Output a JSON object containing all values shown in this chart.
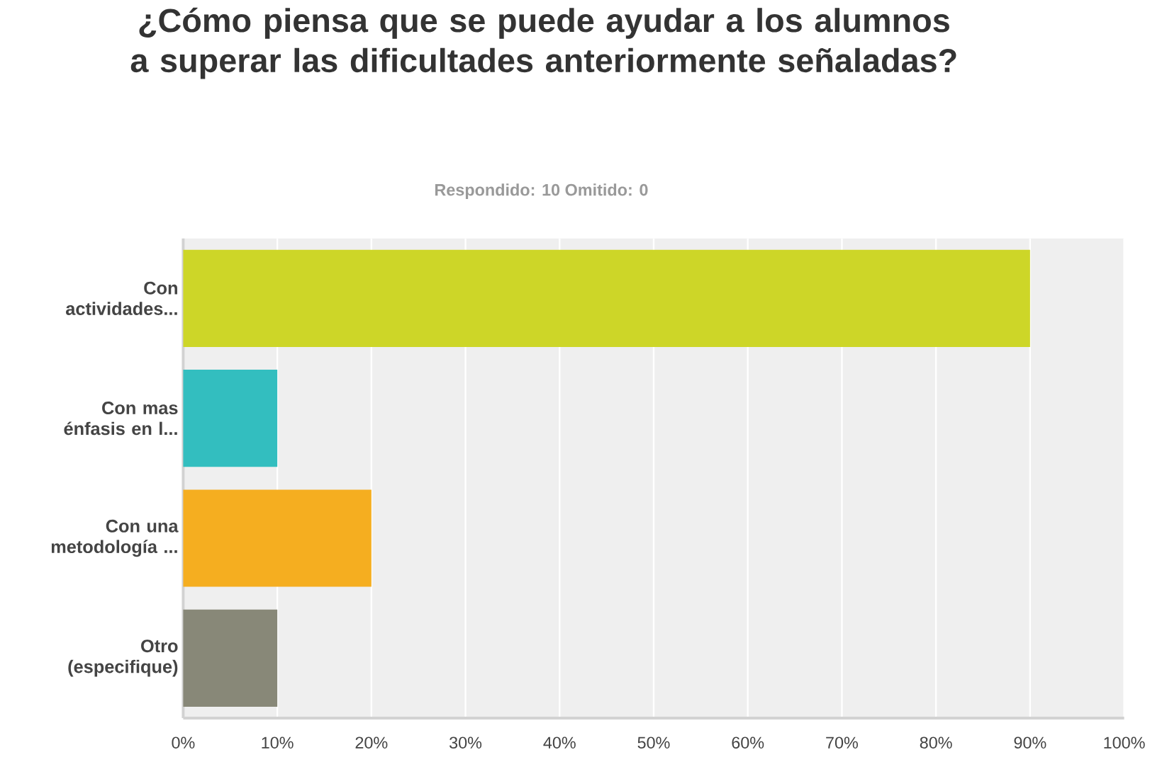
{
  "chart_data": {
    "type": "bar",
    "orientation": "horizontal",
    "title": "¿Cómo piensa que se puede ayudar a los alumnos a superar las dificultades anteriormente señaladas?",
    "subtitle": "Respondido: 10    Omitido: 0",
    "categories": [
      "Con actividades...",
      "Con mas énfasis en l...",
      "Con una metodología ...",
      "Otro (especifique)"
    ],
    "values": [
      90,
      10,
      20,
      10
    ],
    "colors": [
      "#cdd628",
      "#33bebf",
      "#f5ae20",
      "#888878"
    ],
    "xlim": [
      0,
      100
    ],
    "xticks": [
      {
        "value": 0,
        "label": "0%"
      },
      {
        "value": 10,
        "label": "10%"
      },
      {
        "value": 20,
        "label": "20%"
      },
      {
        "value": 30,
        "label": "30%"
      },
      {
        "value": 40,
        "label": "40%"
      },
      {
        "value": 50,
        "label": "50%"
      },
      {
        "value": 60,
        "label": "60%"
      },
      {
        "value": 70,
        "label": "70%"
      },
      {
        "value": 80,
        "label": "80%"
      },
      {
        "value": 90,
        "label": "90%"
      },
      {
        "value": 100,
        "label": "100%"
      }
    ],
    "grid": "x"
  }
}
